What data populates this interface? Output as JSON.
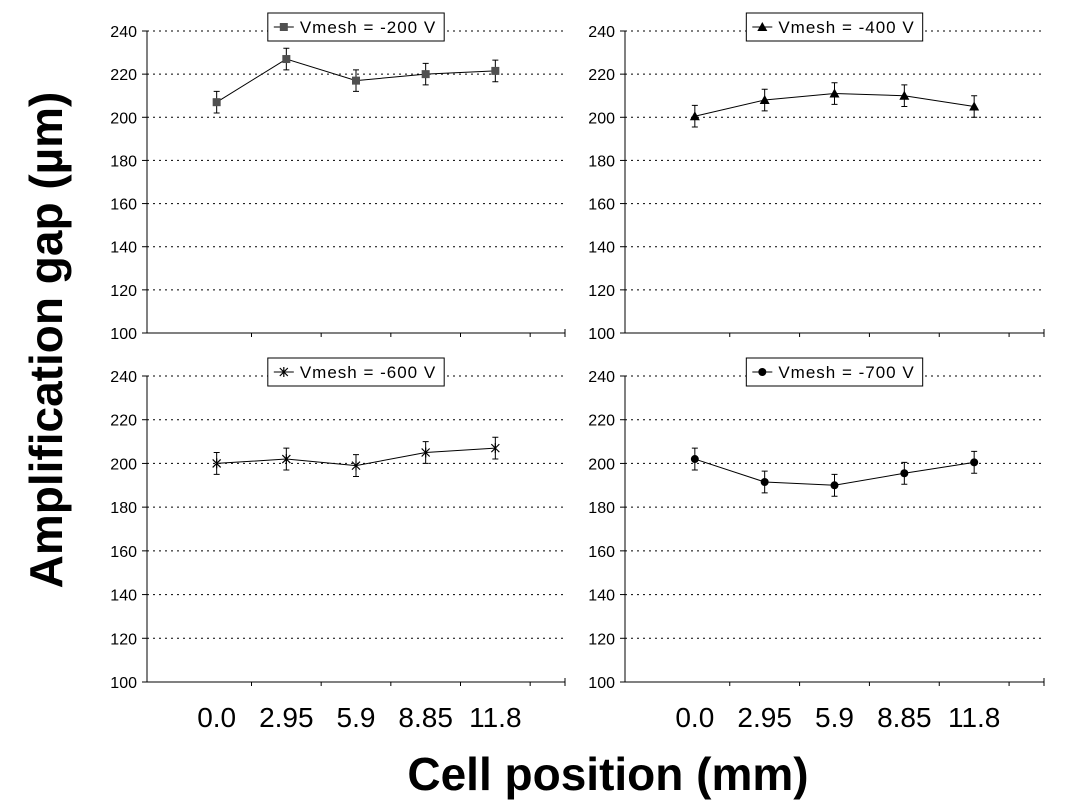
{
  "figure": {
    "ylabel": "Amplification gap (µm)",
    "xlabel": "Cell position (mm)"
  },
  "chart_data": [
    {
      "type": "line",
      "x": [
        "0.0",
        "2.95",
        "5.9",
        "8.85",
        "11.8"
      ],
      "series": [
        {
          "name": "Vmesh = -200 V",
          "values": [
            207,
            227,
            217,
            220,
            221.5
          ],
          "error": [
            5,
            5,
            5,
            5,
            5
          ],
          "marker": "square"
        }
      ],
      "ylim": [
        100,
        240
      ],
      "yticks": [
        100,
        120,
        140,
        160,
        180,
        200,
        220,
        240
      ],
      "grid": true,
      "legend": "top-center"
    },
    {
      "type": "line",
      "x": [
        "0.0",
        "2.95",
        "5.9",
        "8.85",
        "11.8"
      ],
      "series": [
        {
          "name": "Vmesh = -400  V",
          "values": [
            200.5,
            208,
            211,
            210,
            205
          ],
          "error": [
            5,
            5,
            5,
            5,
            5
          ],
          "marker": "triangle"
        }
      ],
      "ylim": [
        100,
        240
      ],
      "yticks": [
        100,
        120,
        140,
        160,
        180,
        200,
        220,
        240
      ],
      "grid": true,
      "legend": "top-center"
    },
    {
      "type": "line",
      "x": [
        "0.0",
        "2.95",
        "5.9",
        "8.85",
        "11.8"
      ],
      "series": [
        {
          "name": "Vmesh = -600 V",
          "values": [
            200,
            202,
            199,
            205,
            207
          ],
          "error": [
            5,
            5,
            5,
            5,
            5
          ],
          "marker": "x"
        }
      ],
      "ylim": [
        100,
        240
      ],
      "yticks": [
        100,
        120,
        140,
        160,
        180,
        200,
        220,
        240
      ],
      "grid": true,
      "legend": "top-center",
      "xticklabels_shown": true
    },
    {
      "type": "line",
      "x": [
        "0.0",
        "2.95",
        "5.9",
        "8.85",
        "11.8"
      ],
      "series": [
        {
          "name": "Vmesh = -700 V",
          "values": [
            202,
            191.5,
            190,
            195.5,
            200.5
          ],
          "error": [
            5,
            5,
            5,
            5,
            5
          ],
          "marker": "circle"
        }
      ],
      "ylim": [
        100,
        240
      ],
      "yticks": [
        100,
        120,
        140,
        160,
        180,
        200,
        220,
        240
      ],
      "grid": true,
      "legend": "top-center",
      "xticklabels_shown": true
    }
  ]
}
